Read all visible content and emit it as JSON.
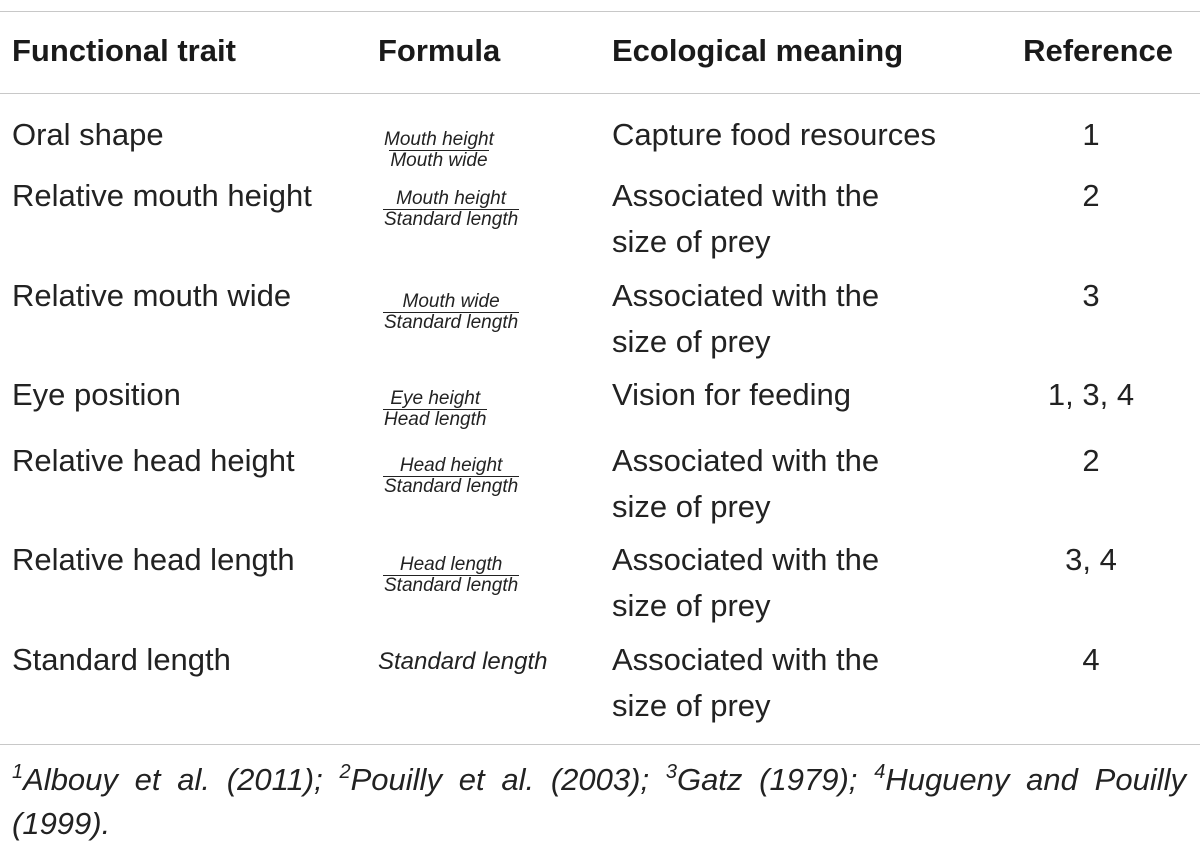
{
  "header": {
    "functional_trait": "Functional trait",
    "formula": "Formula",
    "ecological_meaning": "Ecological meaning",
    "reference": "Reference"
  },
  "rows": [
    {
      "trait": "Oral shape",
      "formula_num": "Mouth height",
      "formula_den": "Mouth wide",
      "meaning_1": "Capture food resources",
      "meaning_2": "",
      "reference": "1"
    },
    {
      "trait": "Relative mouth height",
      "formula_num": "Mouth height",
      "formula_den": "Standard length",
      "meaning_1": "Associated with the",
      "meaning_2": "size of prey",
      "reference": "2"
    },
    {
      "trait": "Relative mouth wide",
      "formula_num": "Mouth wide",
      "formula_den": "Standard length",
      "meaning_1": "Associated with the",
      "meaning_2": "size of prey",
      "reference": "3"
    },
    {
      "trait": "Eye position",
      "formula_num": "Eye height",
      "formula_den": "Head length",
      "meaning_1": "Vision for feeding",
      "meaning_2": "",
      "reference": "1, 3, 4"
    },
    {
      "trait": "Relative head height",
      "formula_num": "Head height",
      "formula_den": "Standard length",
      "meaning_1": "Associated with the",
      "meaning_2": "size of prey",
      "reference": "2"
    },
    {
      "trait": "Relative head length",
      "formula_num": "Head length",
      "formula_den": "Standard length",
      "meaning_1": "Associated with the",
      "meaning_2": "size of prey",
      "reference": "3, 4"
    },
    {
      "trait": "Standard length",
      "formula_plain": "Standard length",
      "meaning_1": "Associated with the",
      "meaning_2": "size of prey",
      "reference": "4"
    }
  ],
  "footnote": {
    "m1": "1",
    "r1": "Albouy et al. (2011);",
    "m2": "2",
    "r2": "Pouilly et al. (2003);",
    "m3": "3",
    "r3": "Gatz (1979);",
    "m4": "4",
    "r4": "Hugueny and Pouilly (1999)."
  }
}
